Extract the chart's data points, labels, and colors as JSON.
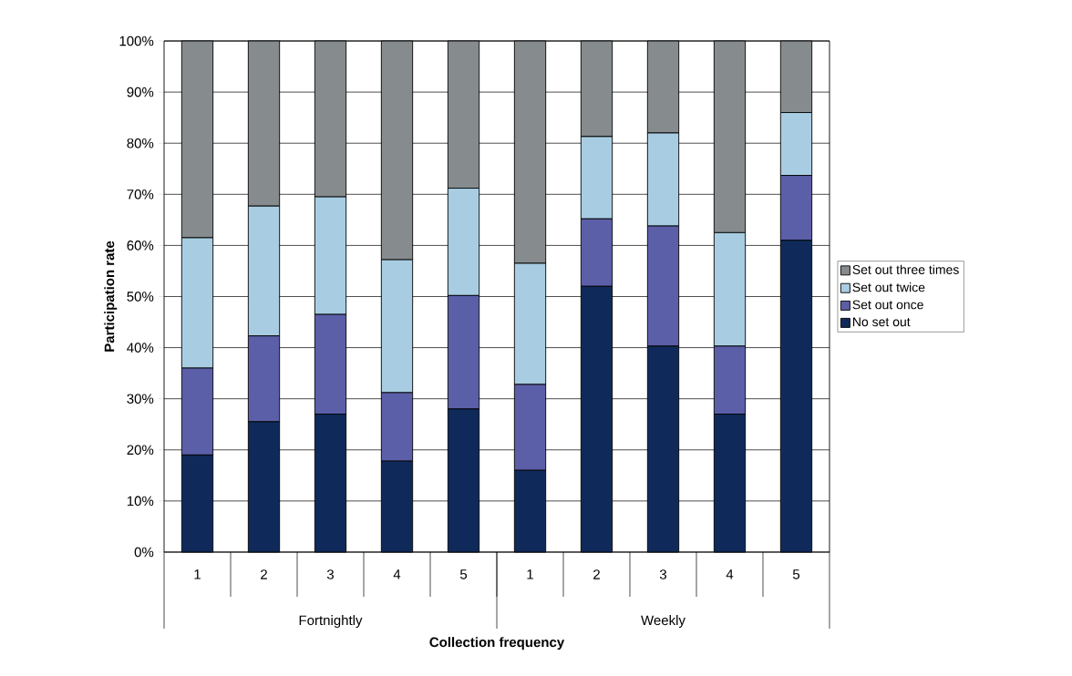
{
  "chart_data": {
    "type": "bar",
    "stacked": true,
    "xlabel": "Collection frequency",
    "ylabel": "Participation rate",
    "categories": [
      "1",
      "2",
      "3",
      "4",
      "5",
      "1",
      "2",
      "3",
      "4",
      "5"
    ],
    "annotations": [
      "Fortnightly",
      "Weekly"
    ],
    "series": [
      {
        "name": "No set out",
        "color": "#0f2a5a",
        "values": [
          19,
          25.5,
          27,
          17.8,
          28,
          16,
          52,
          40.3,
          27,
          61
        ]
      },
      {
        "name": "Set out once",
        "color": "#5b5fa8",
        "values": [
          17,
          16.8,
          19.5,
          13.4,
          22.2,
          16.8,
          13.2,
          23.5,
          13.3,
          12.7
        ]
      },
      {
        "name": "Set out twice",
        "color": "#a8cde2",
        "values": [
          25.5,
          25.4,
          23,
          26,
          21,
          23.7,
          16.1,
          18.2,
          22.2,
          12.3
        ]
      },
      {
        "name": "Set out three times",
        "color": "#868b8e",
        "values": [
          38.5,
          32.3,
          30.5,
          42.8,
          28.8,
          43.5,
          18.7,
          18,
          37.5,
          14
        ]
      }
    ],
    "ylim": [
      0,
      100
    ],
    "yticks": [
      {
        "value": 0,
        "label": "0%"
      },
      {
        "value": 10,
        "label": "10%"
      },
      {
        "value": 20,
        "label": "20%"
      },
      {
        "value": 30,
        "label": "30%"
      },
      {
        "value": 40,
        "label": "40%"
      },
      {
        "value": 50,
        "label": "50%"
      },
      {
        "value": 60,
        "label": "60%"
      },
      {
        "value": 70,
        "label": "70%"
      },
      {
        "value": 80,
        "label": "80%"
      },
      {
        "value": 90,
        "label": "90%"
      },
      {
        "value": 100,
        "label": "100%"
      }
    ],
    "grid": "y",
    "legend": "right"
  }
}
